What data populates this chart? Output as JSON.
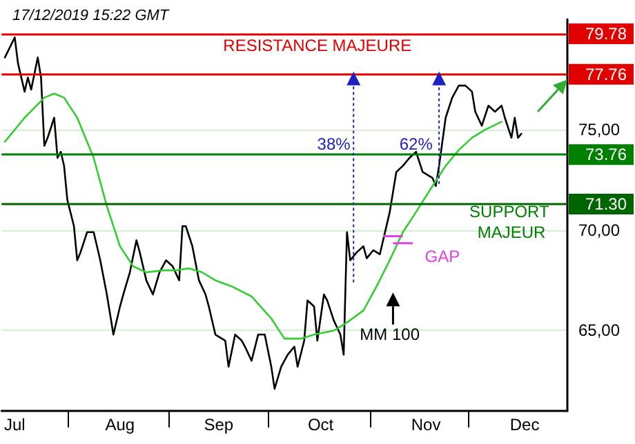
{
  "chart_data": {
    "type": "line",
    "title": "17/12/2019 15:22 GMT",
    "xlim": [
      "2019-07-12",
      "2019-12-31"
    ],
    "xticks": [
      {
        "value": "2019-07-16",
        "label": "Jul"
      },
      {
        "value": "2019-08-01",
        "label": null
      },
      {
        "value": "2019-08-17",
        "label": "Aug"
      },
      {
        "value": "2019-09-01",
        "label": null
      },
      {
        "value": "2019-09-16",
        "label": "Sep"
      },
      {
        "value": "2019-10-01",
        "label": null
      },
      {
        "value": "2019-10-17",
        "label": "Oct"
      },
      {
        "value": "2019-11-01",
        "label": null
      },
      {
        "value": "2019-11-18",
        "label": "Nov"
      },
      {
        "value": "2019-12-01",
        "label": null
      },
      {
        "value": "2019-12-18",
        "label": "Dec"
      }
    ],
    "ylim": [
      61,
      80.5
    ],
    "yticks": [
      {
        "value": 65,
        "label": "65,00"
      },
      {
        "value": 70,
        "label": "70,00"
      },
      {
        "value": 75,
        "label": "75,00"
      }
    ],
    "grid": "y",
    "series": [
      {
        "color": "#000000",
        "x": [
          "2019-07-13",
          "2019-07-16",
          "2019-07-17",
          "2019-07-19",
          "2019-07-20",
          "2019-07-21",
          "2019-07-23",
          "2019-07-24",
          "2019-07-25",
          "2019-07-26",
          "2019-07-28",
          "2019-07-29",
          "2019-07-30",
          "2019-07-31",
          "2019-08-01",
          "2019-08-03",
          "2019-08-04",
          "2019-08-05",
          "2019-08-07",
          "2019-08-09",
          "2019-08-11",
          "2019-08-13",
          "2019-08-15",
          "2019-08-17",
          "2019-08-18",
          "2019-08-20",
          "2019-08-22",
          "2019-08-23",
          "2019-08-25",
          "2019-08-27",
          "2019-08-29",
          "2019-08-31",
          "2019-09-02",
          "2019-09-04",
          "2019-09-05",
          "2019-09-06",
          "2019-09-08",
          "2019-09-10",
          "2019-09-12",
          "2019-09-13",
          "2019-09-15",
          "2019-09-18",
          "2019-09-19",
          "2019-09-21",
          "2019-09-23",
          "2019-09-24",
          "2019-09-26",
          "2019-09-28",
          "2019-09-30",
          "2019-10-02",
          "2019-10-03",
          "2019-10-05",
          "2019-10-07",
          "2019-10-09",
          "2019-10-10",
          "2019-10-12",
          "2019-10-13",
          "2019-10-15",
          "2019-10-16",
          "2019-10-18",
          "2019-10-19",
          "2019-10-21",
          "2019-10-23",
          "2019-10-24",
          "2019-10-25",
          "2019-10-26",
          "2019-10-28",
          "2019-10-30",
          "2019-10-31",
          "2019-11-02",
          "2019-11-04",
          "2019-11-05",
          "2019-11-07",
          "2019-11-09",
          "2019-11-11",
          "2019-11-13",
          "2019-11-15",
          "2019-11-17",
          "2019-11-20",
          "2019-11-21",
          "2019-11-22",
          "2019-11-24",
          "2019-11-26",
          "2019-11-28",
          "2019-11-30",
          "2019-12-02",
          "2019-12-03",
          "2019-12-05",
          "2019-12-07",
          "2019-12-09",
          "2019-12-11",
          "2019-12-12",
          "2019-12-14",
          "2019-12-15",
          "2019-12-16",
          "2019-12-17"
        ],
        "values": [
          78.6,
          79.6,
          78.3,
          76.9,
          77.6,
          77.0,
          78.6,
          77.6,
          74.2,
          74.6,
          75.6,
          73.6,
          73.9,
          73.2,
          71.5,
          70.2,
          68.5,
          68.9,
          69.9,
          69.9,
          68.5,
          66.8,
          64.8,
          66.2,
          66.8,
          67.9,
          69.5,
          68.9,
          67.5,
          66.8,
          67.9,
          68.5,
          68.2,
          67.5,
          70.2,
          70.2,
          69.2,
          67.5,
          66.8,
          66.2,
          64.8,
          64.5,
          63.2,
          64.8,
          64.5,
          64.2,
          63.5,
          64.8,
          64.8,
          63.2,
          62.1,
          63.2,
          63.8,
          64.2,
          63.2,
          64.5,
          66.5,
          66.2,
          64.5,
          66.8,
          66.5,
          65.5,
          64.8,
          63.8,
          69.9,
          68.5,
          68.9,
          69.2,
          68.6,
          69.0,
          68.8,
          69.5,
          70.9,
          72.9,
          73.2,
          73.6,
          73.9,
          72.9,
          72.6,
          72.2,
          73.2,
          75.6,
          76.6,
          77.2,
          77.2,
          76.9,
          75.9,
          75.2,
          76.2,
          75.9,
          76.2,
          75.6,
          74.6,
          75.6,
          74.6,
          74.8
        ]
      },
      {
        "color": "#33cc33",
        "x": [
          "2019-07-13",
          "2019-07-19",
          "2019-07-25",
          "2019-07-28",
          "2019-07-31",
          "2019-08-04",
          "2019-08-09",
          "2019-08-13",
          "2019-08-17",
          "2019-08-21",
          "2019-08-25",
          "2019-08-30",
          "2019-09-03",
          "2019-09-07",
          "2019-09-11",
          "2019-09-15",
          "2019-09-20",
          "2019-09-26",
          "2019-10-02",
          "2019-10-06",
          "2019-10-11",
          "2019-10-15",
          "2019-10-21",
          "2019-10-25",
          "2019-10-30",
          "2019-11-03",
          "2019-11-07",
          "2019-11-11",
          "2019-11-15",
          "2019-11-20",
          "2019-11-24",
          "2019-11-28",
          "2019-12-02",
          "2019-12-06",
          "2019-12-11"
        ],
        "values": [
          74.4,
          75.6,
          76.6,
          76.8,
          76.6,
          75.6,
          73.6,
          71.2,
          69.2,
          68.2,
          67.9,
          68.0,
          68.0,
          68.1,
          67.9,
          67.5,
          67.2,
          66.7,
          65.6,
          64.6,
          64.6,
          64.8,
          65.0,
          65.4,
          66.0,
          67.2,
          68.5,
          69.9,
          70.9,
          72.2,
          73.2,
          74.0,
          74.6,
          75.0,
          75.4
        ]
      }
    ],
    "ref_lines": [
      {
        "axis": "y",
        "value": 79.78,
        "label": "79.78",
        "color": "#e00000"
      },
      {
        "axis": "y",
        "value": 77.76,
        "label": "77.76",
        "color": "#e00000"
      },
      {
        "axis": "y",
        "value": 73.76,
        "label": "73.76",
        "color": "#008000"
      },
      {
        "axis": "y",
        "value": 71.3,
        "label": "71.30",
        "color": "#006400"
      }
    ],
    "annotations": [
      "RESISTANCE MAJEURE",
      "38%",
      "62%",
      "SUPPORT MAJEUR",
      "GAP",
      "MM 100"
    ]
  }
}
